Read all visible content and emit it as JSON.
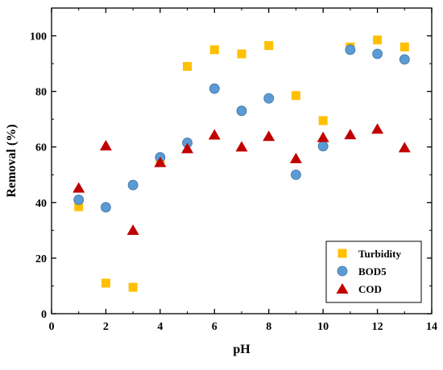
{
  "chart_data": {
    "type": "scatter",
    "title": "",
    "xlabel": "pH",
    "ylabel": "Removal (%)",
    "xlim": [
      0,
      14
    ],
    "ylim": [
      0,
      110
    ],
    "xticks": [
      0,
      2,
      4,
      6,
      8,
      10,
      12,
      14
    ],
    "yticks": [
      0,
      20,
      40,
      60,
      80,
      100
    ],
    "grid": false,
    "legend_position": "bottom-right",
    "series": [
      {
        "name": "Turbidity",
        "marker": "square",
        "color": "#ffc000",
        "x": [
          1,
          2,
          3,
          4,
          5,
          6,
          7,
          8,
          9,
          10,
          11,
          12,
          13
        ],
        "y": [
          38.5,
          11,
          9.5,
          54.5,
          89,
          95,
          93.5,
          96.5,
          78.5,
          69.5,
          96,
          98.5,
          96
        ]
      },
      {
        "name": "BOD5",
        "marker": "circle",
        "color": "#5b9bd5",
        "x": [
          1,
          2,
          3,
          4,
          5,
          6,
          7,
          8,
          9,
          10,
          11,
          12,
          13
        ],
        "y": [
          41,
          38.3,
          46.3,
          56.3,
          61.5,
          81,
          73,
          77.5,
          50,
          60.3,
          95,
          93.5,
          91.5
        ]
      },
      {
        "name": "COD",
        "marker": "triangle",
        "color": "#c00000",
        "x": [
          1,
          2,
          3,
          4,
          5,
          6,
          7,
          8,
          9,
          10,
          11,
          12,
          13
        ],
        "y": [
          45.3,
          60.5,
          30.1,
          54.5,
          59.5,
          64.4,
          60.1,
          63.9,
          55.9,
          63.5,
          64.5,
          66.5,
          59.8
        ]
      }
    ]
  }
}
